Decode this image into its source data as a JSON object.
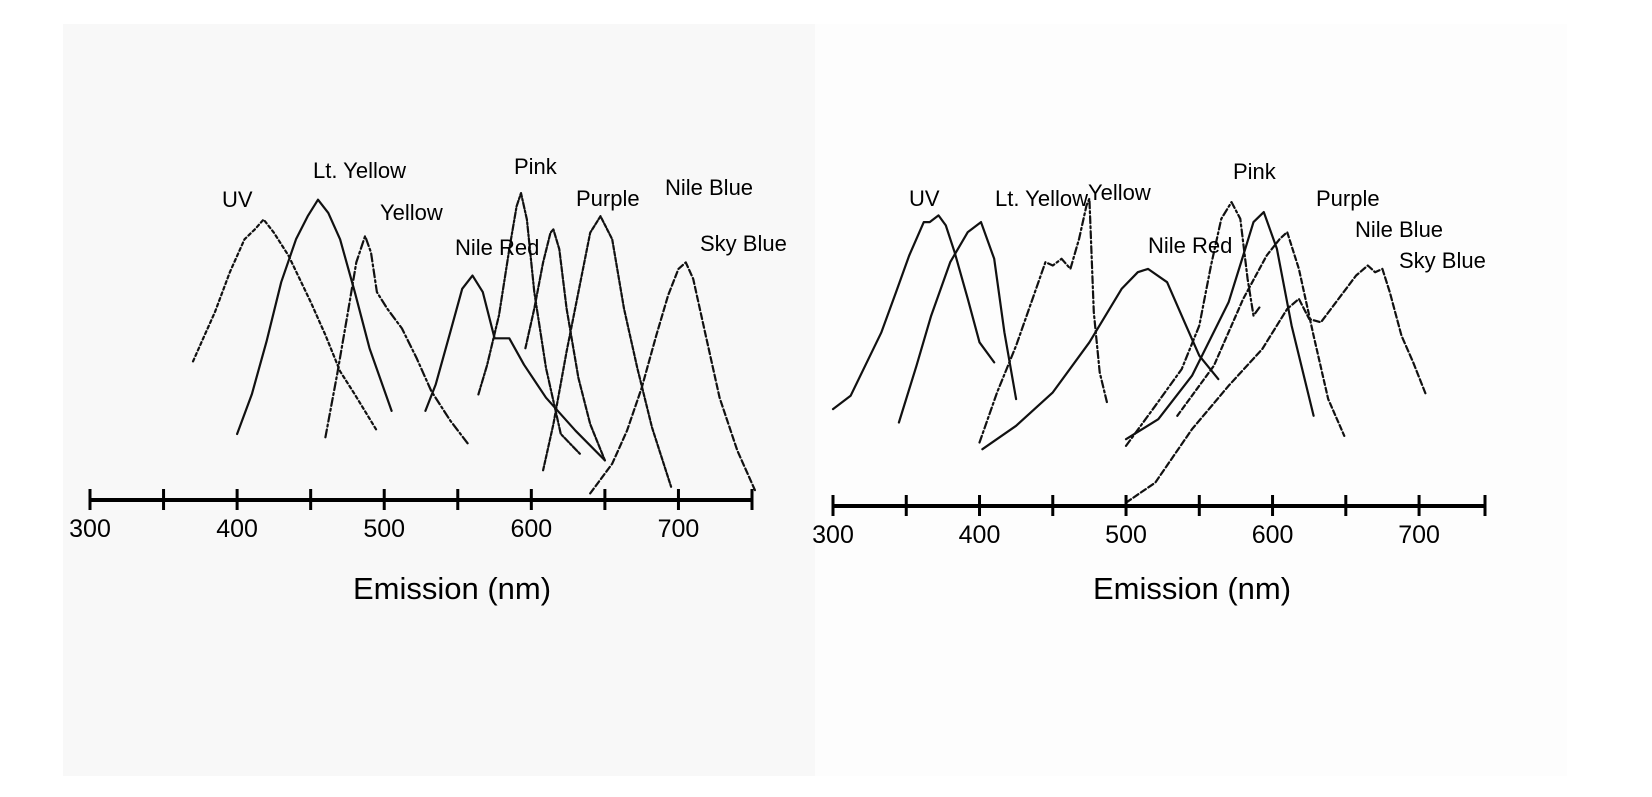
{
  "chart_data": [
    {
      "type": "line",
      "xlabel": "Emission (nm)",
      "ylabel": "",
      "xlim": [
        300,
        750
      ],
      "x_ticks": [
        300,
        350,
        400,
        450,
        500,
        550,
        600,
        650,
        700,
        750
      ],
      "x_tick_labels": [
        "300",
        "400",
        "500",
        "600",
        "700"
      ],
      "x_tick_label_values": [
        300,
        400,
        500,
        600,
        700
      ],
      "ylim": [
        0,
        1
      ],
      "grid": false,
      "legend": "none",
      "series": [
        {
          "name": "UV",
          "peak_x": 418,
          "dash": "3,3",
          "x": [
            370,
            375,
            385,
            395,
            405,
            412,
            418,
            425,
            435,
            450,
            460,
            470,
            480,
            495
          ],
          "y": [
            0.42,
            0.47,
            0.57,
            0.69,
            0.79,
            0.82,
            0.85,
            0.81,
            0.74,
            0.6,
            0.5,
            0.39,
            0.32,
            0.21
          ]
        },
        {
          "name": "Lt. Yellow",
          "peak_x": 455,
          "dash": "",
          "x": [
            400,
            410,
            420,
            430,
            440,
            448,
            455,
            462,
            470,
            480,
            490,
            505
          ],
          "y": [
            0.2,
            0.32,
            0.48,
            0.66,
            0.79,
            0.86,
            0.91,
            0.87,
            0.79,
            0.63,
            0.46,
            0.27
          ]
        },
        {
          "name": "Yellow",
          "peak_x": 487,
          "dash": "8,3,2,3",
          "x": [
            460,
            468,
            475,
            481,
            487,
            491,
            495,
            502,
            512,
            522,
            532,
            545,
            557
          ],
          "y": [
            0.19,
            0.38,
            0.56,
            0.72,
            0.8,
            0.75,
            0.63,
            0.58,
            0.52,
            0.43,
            0.33,
            0.24,
            0.17
          ]
        },
        {
          "name": "Nile Red",
          "peak_x": 560,
          "dash": "",
          "x": [
            528,
            535,
            545,
            553,
            560,
            567,
            575,
            585,
            595,
            610,
            630,
            650
          ],
          "y": [
            0.27,
            0.35,
            0.51,
            0.64,
            0.68,
            0.63,
            0.49,
            0.49,
            0.41,
            0.31,
            0.21,
            0.12
          ]
        },
        {
          "name": "Pink",
          "peak_x": 593,
          "dash": "6,2,2,2",
          "x": [
            564,
            570,
            578,
            585,
            590,
            593,
            597,
            602,
            610,
            620,
            633
          ],
          "y": [
            0.32,
            0.41,
            0.56,
            0.76,
            0.89,
            0.93,
            0.85,
            0.63,
            0.4,
            0.2,
            0.14
          ]
        },
        {
          "name": "Purple",
          "peak_x": 615,
          "dash": "5,2",
          "x": [
            596,
            602,
            608,
            613,
            615,
            619,
            624,
            632,
            640,
            650
          ],
          "y": [
            0.46,
            0.58,
            0.72,
            0.81,
            0.82,
            0.76,
            0.58,
            0.37,
            0.23,
            0.12
          ]
        },
        {
          "name": "Nile Blue",
          "peak_x": 647,
          "dash": "4,2",
          "x": [
            608,
            615,
            624,
            632,
            640,
            647,
            655,
            663,
            672,
            682,
            695
          ],
          "y": [
            0.09,
            0.23,
            0.45,
            0.63,
            0.81,
            0.86,
            0.79,
            0.58,
            0.4,
            0.22,
            0.04
          ]
        },
        {
          "name": "Sky Blue",
          "peak_x": 705,
          "dash": "6,3",
          "x": [
            640,
            655,
            665,
            675,
            685,
            693,
            700,
            705,
            710,
            718,
            728,
            740,
            752
          ],
          "y": [
            0.02,
            0.11,
            0.21,
            0.34,
            0.5,
            0.62,
            0.7,
            0.72,
            0.67,
            0.51,
            0.31,
            0.15,
            0.03
          ]
        }
      ]
    },
    {
      "type": "line",
      "xlabel": "Emission (nm)",
      "ylabel": "",
      "xlim": [
        300,
        745
      ],
      "x_ticks": [
        300,
        350,
        400,
        450,
        500,
        550,
        600,
        650,
        700,
        745
      ],
      "x_tick_labels": [
        "300",
        "400",
        "500",
        "600",
        "700"
      ],
      "x_tick_label_values": [
        300,
        400,
        500,
        600,
        700
      ],
      "ylim": [
        0,
        1
      ],
      "grid": false,
      "legend": "none",
      "series": [
        {
          "name": "UV",
          "peak_x": 372,
          "dash": "",
          "x": [
            300,
            312,
            322,
            333,
            343,
            352,
            362,
            366,
            372,
            377,
            383,
            392,
            400,
            410
          ],
          "y": [
            0.29,
            0.33,
            0.42,
            0.52,
            0.64,
            0.75,
            0.85,
            0.85,
            0.87,
            0.84,
            0.76,
            0.62,
            0.49,
            0.43
          ]
        },
        {
          "name": "Lt. Yellow",
          "peak_x": 401,
          "dash": "",
          "x": [
            345,
            357,
            367,
            380,
            392,
            401,
            410,
            417,
            425
          ],
          "y": [
            0.25,
            0.42,
            0.57,
            0.73,
            0.82,
            0.85,
            0.74,
            0.52,
            0.32
          ]
        },
        {
          "name": "Yellow",
          "peak_x": 475,
          "dash": "7,3,2,3",
          "x": [
            400,
            412,
            425,
            437,
            445,
            450,
            456,
            462,
            468,
            473,
            475,
            478,
            482,
            487
          ],
          "y": [
            0.19,
            0.34,
            0.48,
            0.63,
            0.73,
            0.72,
            0.74,
            0.71,
            0.8,
            0.9,
            0.92,
            0.58,
            0.4,
            0.31
          ]
        },
        {
          "name": "Nile Red",
          "peak_x": 515,
          "dash": "",
          "x": [
            402,
            425,
            450,
            475,
            497,
            508,
            515,
            528,
            540,
            550,
            563
          ],
          "y": [
            0.17,
            0.24,
            0.34,
            0.49,
            0.65,
            0.7,
            0.71,
            0.67,
            0.55,
            0.45,
            0.38
          ]
        },
        {
          "name": "Pink",
          "peak_x": 572,
          "dash": "7,3,2,3",
          "x": [
            500,
            520,
            538,
            550,
            558,
            565,
            572,
            578,
            583,
            587,
            592
          ],
          "y": [
            0.18,
            0.3,
            0.41,
            0.54,
            0.72,
            0.86,
            0.91,
            0.86,
            0.68,
            0.57,
            0.6
          ]
        },
        {
          "name": "Purple",
          "peak_x": 594,
          "dash": "",
          "x": [
            500,
            522,
            545,
            570,
            580,
            587,
            594,
            603,
            613,
            628
          ],
          "y": [
            0.2,
            0.26,
            0.39,
            0.61,
            0.75,
            0.85,
            0.88,
            0.77,
            0.54,
            0.27
          ]
        },
        {
          "name": "Nile Blue",
          "peak_x": 610,
          "dash": "5,3",
          "x": [
            535,
            560,
            580,
            596,
            605,
            610,
            618,
            628,
            638,
            649
          ],
          "y": [
            0.27,
            0.42,
            0.62,
            0.75,
            0.8,
            0.82,
            0.71,
            0.51,
            0.32,
            0.21
          ]
        },
        {
          "name": "Sky Blue",
          "peak_x": 665,
          "dash": "6,3",
          "x": [
            500,
            520,
            545,
            570,
            593,
            610,
            618,
            625,
            633,
            645,
            657,
            665,
            670,
            675,
            680,
            688,
            696,
            705
          ],
          "y": [
            0.01,
            0.07,
            0.23,
            0.36,
            0.47,
            0.59,
            0.62,
            0.56,
            0.55,
            0.62,
            0.69,
            0.72,
            0.7,
            0.71,
            0.64,
            0.51,
            0.43,
            0.33
          ]
        }
      ]
    }
  ]
}
